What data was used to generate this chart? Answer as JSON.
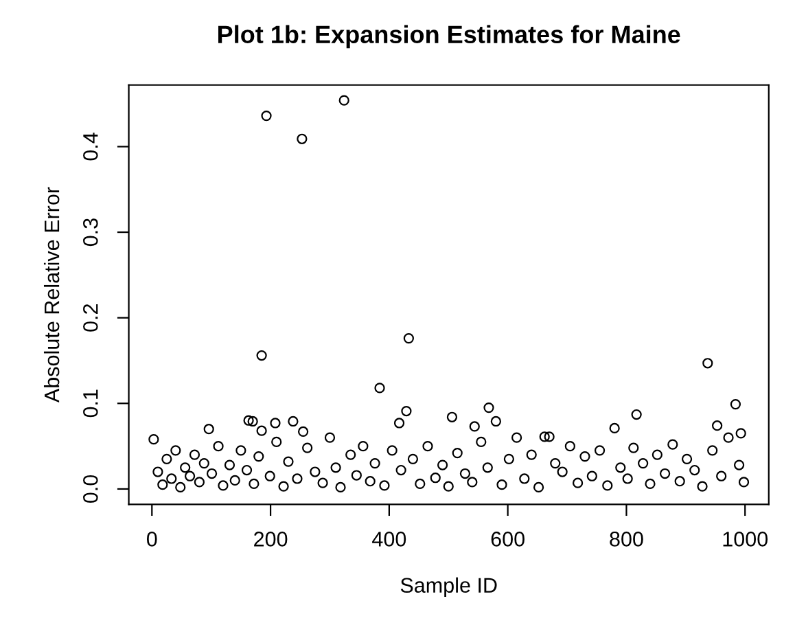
{
  "chart_data": {
    "type": "scatter",
    "title": "Plot 1b: Expansion Estimates for Maine",
    "xlabel": "Sample ID",
    "ylabel": "Absolute Relative Error",
    "xlim": [
      -39,
      1040
    ],
    "ylim": [
      -0.018,
      0.472
    ],
    "xticks": [
      0,
      200,
      400,
      600,
      800,
      1000
    ],
    "yticks": [
      {
        "value": 0,
        "label": "0.0"
      },
      0.1,
      0.2,
      0.3,
      0.4
    ],
    "marker": "circle",
    "grid": false,
    "series": [
      {
        "color": "#000000",
        "x": [
          193,
          253,
          324,
          185,
          433,
          384,
          937,
          429,
          417,
          984,
          568,
          580,
          506,
          817,
          953,
          96,
          163,
          170,
          238,
          208,
          255,
          185,
          993,
          780,
          544,
          662,
          670,
          3,
          10,
          18,
          25,
          33,
          40,
          48,
          56,
          64,
          72,
          80,
          88,
          101,
          112,
          120,
          131,
          140,
          150,
          160,
          172,
          180,
          199,
          210,
          222,
          230,
          245,
          262,
          275,
          288,
          300,
          310,
          318,
          335,
          345,
          356,
          368,
          376,
          392,
          405,
          420,
          440,
          452,
          465,
          478,
          490,
          500,
          515,
          528,
          540,
          555,
          566,
          590,
          602,
          615,
          628,
          640,
          652,
          680,
          692,
          705,
          718,
          730,
          742,
          755,
          768,
          790,
          802,
          812,
          828,
          840,
          852,
          865,
          878,
          890,
          902,
          915,
          928,
          945,
          960,
          972,
          990,
          998
        ],
        "values": [
          0.436,
          0.409,
          0.454,
          0.156,
          0.176,
          0.118,
          0.147,
          0.091,
          0.077,
          0.099,
          0.095,
          0.079,
          0.084,
          0.087,
          0.074,
          0.07,
          0.08,
          0.079,
          0.079,
          0.077,
          0.067,
          0.068,
          0.065,
          0.071,
          0.073,
          0.061,
          0.061,
          0.058,
          0.02,
          0.005,
          0.035,
          0.012,
          0.045,
          0.002,
          0.025,
          0.015,
          0.04,
          0.008,
          0.03,
          0.018,
          0.05,
          0.004,
          0.028,
          0.01,
          0.045,
          0.022,
          0.006,
          0.038,
          0.015,
          0.055,
          0.003,
          0.032,
          0.012,
          0.048,
          0.02,
          0.007,
          0.06,
          0.025,
          0.002,
          0.04,
          0.016,
          0.05,
          0.009,
          0.03,
          0.004,
          0.045,
          0.022,
          0.035,
          0.006,
          0.05,
          0.013,
          0.028,
          0.003,
          0.042,
          0.018,
          0.008,
          0.055,
          0.025,
          0.005,
          0.035,
          0.06,
          0.012,
          0.04,
          0.002,
          0.03,
          0.02,
          0.05,
          0.007,
          0.038,
          0.015,
          0.045,
          0.004,
          0.025,
          0.012,
          0.048,
          0.03,
          0.006,
          0.04,
          0.018,
          0.052,
          0.009,
          0.035,
          0.022,
          0.003,
          0.045,
          0.015,
          0.06,
          0.028,
          0.008
        ]
      }
    ]
  }
}
